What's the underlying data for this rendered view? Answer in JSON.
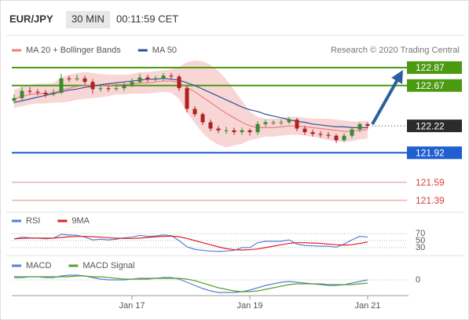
{
  "header": {
    "symbol": "EUR/JPY",
    "timeframe": "30 MIN",
    "time": "00:11:59 CET"
  },
  "chart_data": [
    {
      "type": "candlestick",
      "credit": "Research © 2020 Trading Central",
      "categories": [
        null,
        null,
        null,
        null,
        null,
        null,
        null,
        null,
        null,
        null,
        null,
        null,
        null,
        null,
        null,
        "Jan 17",
        null,
        null,
        null,
        null,
        null,
        null,
        null,
        null,
        null,
        null,
        null,
        null,
        null,
        null,
        "Jan 19",
        null,
        null,
        null,
        null,
        null,
        null,
        null,
        null,
        null,
        null,
        null,
        null,
        null,
        null,
        "Jan 21"
      ],
      "open": [
        122.5,
        122.53,
        122.61,
        122.6,
        122.59,
        122.57,
        122.59,
        122.75,
        122.74,
        122.75,
        122.71,
        122.63,
        122.64,
        122.63,
        122.64,
        122.68,
        122.71,
        122.76,
        122.74,
        122.75,
        122.78,
        122.77,
        122.64,
        122.41,
        122.35,
        122.26,
        122.19,
        122.17,
        122.17,
        122.15,
        122.17,
        122.15,
        122.24,
        122.26,
        122.26,
        122.26,
        122.29,
        122.19,
        122.15,
        122.13,
        122.12,
        122.11,
        122.06,
        122.11,
        122.18,
        122.24
      ],
      "high": [
        122.57,
        122.65,
        122.65,
        122.63,
        122.62,
        122.63,
        122.8,
        122.78,
        122.79,
        122.78,
        122.74,
        122.68,
        122.67,
        122.68,
        122.71,
        122.75,
        122.8,
        122.79,
        122.78,
        122.81,
        122.81,
        122.79,
        122.66,
        122.44,
        122.37,
        122.29,
        122.22,
        122.21,
        122.2,
        122.2,
        122.19,
        122.27,
        122.29,
        122.28,
        122.29,
        122.32,
        122.31,
        122.22,
        122.18,
        122.16,
        122.15,
        122.13,
        122.14,
        122.21,
        122.26,
        122.26
      ],
      "low": [
        122.47,
        122.5,
        122.57,
        122.56,
        122.54,
        122.55,
        122.57,
        122.71,
        122.72,
        122.68,
        122.58,
        122.6,
        122.6,
        122.61,
        122.61,
        122.65,
        122.69,
        122.71,
        122.72,
        122.72,
        122.74,
        122.61,
        122.37,
        122.32,
        122.23,
        122.16,
        122.14,
        122.13,
        122.12,
        122.12,
        122.11,
        122.12,
        122.21,
        122.23,
        122.23,
        122.24,
        122.16,
        122.12,
        122.1,
        122.09,
        122.08,
        122.03,
        122.04,
        122.08,
        122.15,
        122.19
      ],
      "close": [
        122.53,
        122.61,
        122.6,
        122.59,
        122.57,
        122.59,
        122.75,
        122.74,
        122.75,
        122.71,
        122.63,
        122.64,
        122.63,
        122.64,
        122.68,
        122.71,
        122.76,
        122.74,
        122.75,
        122.78,
        122.77,
        122.64,
        122.41,
        122.35,
        122.26,
        122.19,
        122.17,
        122.17,
        122.15,
        122.17,
        122.15,
        122.24,
        122.26,
        122.26,
        122.26,
        122.29,
        122.19,
        122.15,
        122.13,
        122.12,
        122.11,
        122.06,
        122.11,
        122.18,
        122.24,
        122.22
      ],
      "up_color": "#3c8a2e",
      "down_color": "#b02020",
      "series": [
        {
          "name": "MA 20 + Bollinger Bands",
          "color": "#e88080",
          "band_color": "#f9d6d6",
          "values": [
            122.52,
            122.55,
            122.57,
            122.58,
            122.58,
            122.59,
            122.62,
            122.64,
            122.66,
            122.67,
            122.67,
            122.67,
            122.67,
            122.68,
            122.68,
            122.69,
            122.7,
            122.7,
            122.71,
            122.72,
            122.72,
            122.7,
            122.65,
            122.6,
            122.54,
            122.48,
            122.42,
            122.36,
            122.31,
            122.26,
            122.22,
            122.2,
            122.2,
            122.2,
            122.21,
            122.22,
            122.22,
            122.21,
            122.2,
            122.19,
            122.18,
            122.17,
            122.16,
            122.16,
            122.17,
            122.18
          ],
          "upper": [
            122.62,
            122.66,
            122.68,
            122.69,
            122.69,
            122.7,
            122.76,
            122.79,
            122.81,
            122.82,
            122.81,
            122.8,
            122.79,
            122.79,
            122.79,
            122.8,
            122.82,
            122.82,
            122.83,
            122.84,
            122.85,
            122.88,
            122.93,
            122.95,
            122.94,
            122.9,
            122.83,
            122.74,
            122.62,
            122.5,
            122.38,
            122.32,
            122.3,
            122.3,
            122.31,
            122.32,
            122.32,
            122.31,
            122.3,
            122.3,
            122.3,
            122.29,
            122.28,
            122.27,
            122.27,
            122.28
          ],
          "lower": [
            122.42,
            122.44,
            122.46,
            122.47,
            122.47,
            122.48,
            122.48,
            122.49,
            122.51,
            122.52,
            122.53,
            122.54,
            122.55,
            122.57,
            122.57,
            122.58,
            122.58,
            122.58,
            122.59,
            122.6,
            122.59,
            122.52,
            122.37,
            122.25,
            122.14,
            122.06,
            122.01,
            121.98,
            122.0,
            122.02,
            122.06,
            122.08,
            122.1,
            122.1,
            122.11,
            122.12,
            122.12,
            122.11,
            122.1,
            122.08,
            122.06,
            122.05,
            122.04,
            122.05,
            122.07,
            122.08
          ]
        },
        {
          "name": "MA 50",
          "color": "#2f5597",
          "values": [
            122.48,
            122.5,
            122.52,
            122.54,
            122.56,
            122.58,
            122.6,
            122.62,
            122.63,
            122.65,
            122.66,
            122.68,
            122.69,
            122.7,
            122.71,
            122.72,
            122.73,
            122.74,
            122.74,
            122.75,
            122.74,
            122.73,
            122.7,
            122.67,
            122.63,
            122.59,
            122.55,
            122.51,
            122.47,
            122.43,
            122.4,
            122.38,
            122.35,
            122.33,
            122.31,
            122.29,
            122.27,
            122.26,
            122.24,
            122.23,
            122.22,
            122.21,
            122.21,
            122.2,
            122.2,
            122.2
          ]
        }
      ],
      "levels": [
        {
          "value": 122.87,
          "color": "#4c9a12",
          "style": "box"
        },
        {
          "value": 122.67,
          "color": "#4c9a12",
          "style": "box"
        },
        {
          "value": 122.22,
          "color": "#2b2b2b",
          "style": "current"
        },
        {
          "value": 121.92,
          "color": "#1f5fd0",
          "style": "box"
        },
        {
          "value": 121.59,
          "color": "#d94040",
          "style": "text"
        },
        {
          "value": 121.39,
          "color": "#d94040",
          "style": "text"
        }
      ],
      "ylim": [
        121.3,
        123.01
      ]
    },
    {
      "type": "line",
      "series": [
        {
          "name": "RSI",
          "color": "#5b7fd6",
          "values": [
            55,
            60,
            58,
            57,
            55,
            57,
            68,
            66,
            65,
            60,
            52,
            54,
            52,
            54,
            58,
            60,
            65,
            62,
            63,
            66,
            64,
            50,
            32,
            25,
            22,
            20,
            19,
            20,
            22,
            30,
            30,
            44,
            48,
            48,
            48,
            52,
            40,
            36,
            35,
            34,
            34,
            31,
            40,
            52,
            62,
            60
          ]
        },
        {
          "name": "9MA",
          "color": "#e02020",
          "values": [
            55,
            56,
            57,
            57,
            57,
            57,
            59,
            61,
            62,
            62,
            61,
            60,
            58,
            57,
            56,
            56,
            57,
            59,
            61,
            62,
            63,
            61,
            56,
            50,
            44,
            38,
            32,
            27,
            24,
            23,
            24,
            26,
            30,
            34,
            38,
            42,
            44,
            44,
            43,
            42,
            40,
            38,
            37,
            38,
            42,
            46
          ]
        }
      ],
      "ylim": [
        14,
        86
      ],
      "yticks": [
        30,
        50,
        70
      ]
    },
    {
      "type": "line",
      "series": [
        {
          "name": "MACD",
          "color": "#5b7fd6",
          "values": [
            0.04,
            0.04,
            0.04,
            0.04,
            0.03,
            0.03,
            0.05,
            0.06,
            0.06,
            0.05,
            0.03,
            0.01,
            0.0,
            0.0,
            0.0,
            0.01,
            0.02,
            0.02,
            0.02,
            0.03,
            0.03,
            0.01,
            -0.03,
            -0.07,
            -0.11,
            -0.14,
            -0.16,
            -0.16,
            -0.16,
            -0.15,
            -0.13,
            -0.1,
            -0.07,
            -0.05,
            -0.03,
            -0.02,
            -0.03,
            -0.04,
            -0.05,
            -0.06,
            -0.07,
            -0.07,
            -0.06,
            -0.04,
            -0.02,
            0.0
          ]
        },
        {
          "name": "MACD Signal",
          "color": "#5aa02c",
          "values": [
            0.03,
            0.03,
            0.04,
            0.04,
            0.04,
            0.04,
            0.04,
            0.04,
            0.05,
            0.05,
            0.04,
            0.04,
            0.03,
            0.02,
            0.01,
            0.01,
            0.01,
            0.01,
            0.02,
            0.02,
            0.02,
            0.02,
            0.01,
            -0.01,
            -0.04,
            -0.07,
            -0.1,
            -0.12,
            -0.14,
            -0.15,
            -0.15,
            -0.14,
            -0.12,
            -0.1,
            -0.08,
            -0.06,
            -0.05,
            -0.05,
            -0.05,
            -0.05,
            -0.06,
            -0.06,
            -0.06,
            -0.06,
            -0.05,
            -0.04
          ]
        }
      ],
      "ylim": [
        -0.22,
        0.28
      ],
      "yticks": [
        0
      ]
    }
  ]
}
